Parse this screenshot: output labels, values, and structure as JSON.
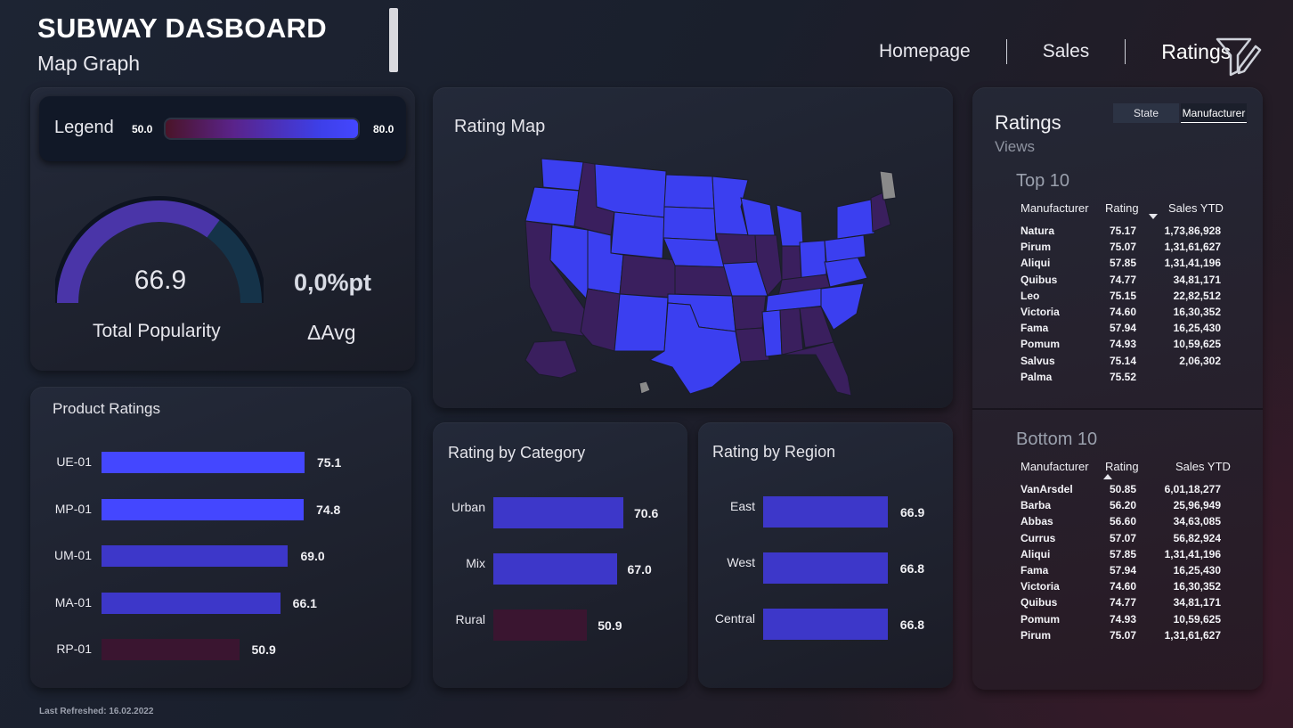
{
  "header": {
    "title": "SUBWAY DASBOARD",
    "subtitle": "Map Graph"
  },
  "nav": {
    "items": [
      "Homepage",
      "Sales",
      "Ratings"
    ],
    "active": "Ratings"
  },
  "legend": {
    "label": "Legend",
    "min": "50.0",
    "max": "80.0"
  },
  "kpi": {
    "gauge_value": "66.9",
    "gauge_fraction": 0.7,
    "gauge_label": "Total Popularity",
    "delta_value": "0,0%pt",
    "delta_label": "ΔAvg"
  },
  "product_ratings": {
    "title": "Product Ratings",
    "items": [
      {
        "label": "UE-01",
        "value": 75.1,
        "display": "75.1"
      },
      {
        "label": "MP-01",
        "value": 74.8,
        "display": "74.8"
      },
      {
        "label": "UM-01",
        "value": 69.0,
        "display": "69.0"
      },
      {
        "label": "MA-01",
        "value": 66.1,
        "display": "66.1"
      },
      {
        "label": "RP-01",
        "value": 50.9,
        "display": "50.9"
      }
    ]
  },
  "rating_map": {
    "title": "Rating Map"
  },
  "rating_by_category": {
    "title": "Rating by Category",
    "items": [
      {
        "label": "Urban",
        "value": 70.6,
        "display": "70.6"
      },
      {
        "label": "Mix",
        "value": 67.0,
        "display": "67.0"
      },
      {
        "label": "Rural",
        "value": 50.9,
        "display": "50.9"
      }
    ]
  },
  "rating_by_region": {
    "title": "Rating by Region",
    "items": [
      {
        "label": "East",
        "value": 66.9,
        "display": "66.9"
      },
      {
        "label": "West",
        "value": 66.8,
        "display": "66.8"
      },
      {
        "label": "Central",
        "value": 66.8,
        "display": "66.8"
      }
    ]
  },
  "ratings_views": {
    "title": "Ratings",
    "subtitle": "Views",
    "tabs": [
      "State",
      "Manufacturer"
    ],
    "active_tab": "Manufacturer"
  },
  "top10": {
    "title": "Top 10",
    "columns": [
      "Manufacturer",
      "Rating",
      "Sales YTD"
    ],
    "rows": [
      [
        "Natura",
        "75.17",
        "1,73,86,928"
      ],
      [
        "Pirum",
        "75.07",
        "1,31,61,627"
      ],
      [
        "Aliqui",
        "57.85",
        "1,31,41,196"
      ],
      [
        "Quibus",
        "74.77",
        "34,81,171"
      ],
      [
        "Leo",
        "75.15",
        "22,82,512"
      ],
      [
        "Victoria",
        "74.60",
        "16,30,352"
      ],
      [
        "Fama",
        "57.94",
        "16,25,430"
      ],
      [
        "Pomum",
        "74.93",
        "10,59,625"
      ],
      [
        "Salvus",
        "75.14",
        "2,06,302"
      ],
      [
        "Palma",
        "75.52",
        ""
      ]
    ]
  },
  "bottom10": {
    "title": "Bottom 10",
    "columns": [
      "Manufacturer",
      "Rating",
      "Sales YTD"
    ],
    "rows": [
      [
        "VanArsdel",
        "50.85",
        "6,01,18,277"
      ],
      [
        "Barba",
        "56.20",
        "25,96,949"
      ],
      [
        "Abbas",
        "56.60",
        "34,63,085"
      ],
      [
        "Currus",
        "57.07",
        "56,82,924"
      ],
      [
        "Aliqui",
        "57.85",
        "1,31,41,196"
      ],
      [
        "Fama",
        "57.94",
        "16,25,430"
      ],
      [
        "Victoria",
        "74.60",
        "16,30,352"
      ],
      [
        "Quibus",
        "74.77",
        "34,81,171"
      ],
      [
        "Pomum",
        "74.93",
        "10,59,625"
      ],
      [
        "Pirum",
        "75.07",
        "1,31,61,627"
      ]
    ]
  },
  "footer": {
    "last_refreshed": "Last Refreshed: 16.02.2022"
  },
  "colors": {
    "high": "#4447ff",
    "mid": "#3d37c9",
    "low": "#3a1530",
    "map_blue": "#3b3ff0",
    "map_purple": "#3a1f5e",
    "map_gray": "#8a8a8a"
  }
}
